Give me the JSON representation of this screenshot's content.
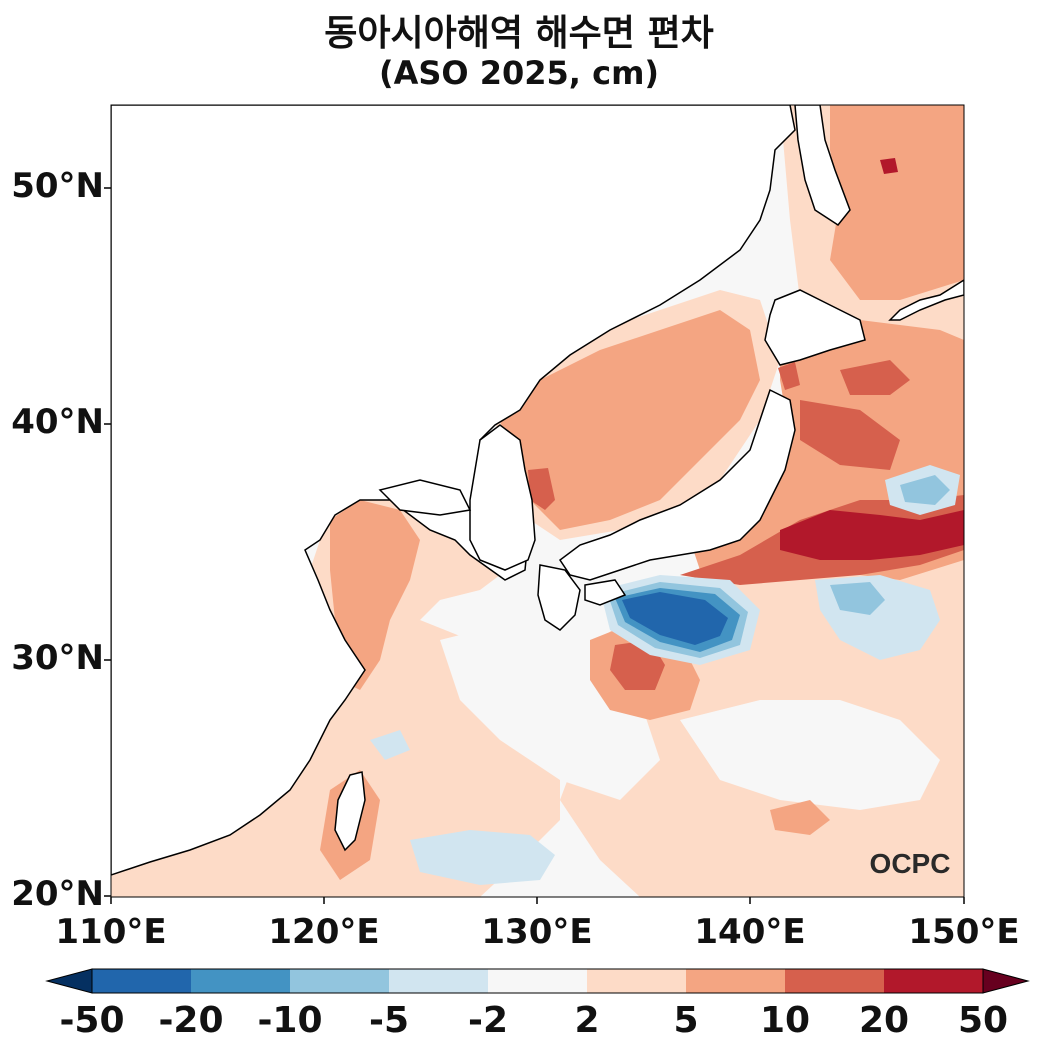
{
  "title": {
    "line1": "동아시아해역 해수면 편차",
    "line2": "(ASO 2025, cm)"
  },
  "axes": {
    "lat_ticks": [
      "50°N",
      "40°N",
      "30°N",
      "20°N"
    ],
    "lon_ticks": [
      "110°E",
      "120°E",
      "130°E",
      "140°E",
      "150°E"
    ],
    "lon_range": [
      110,
      150
    ],
    "lat_range": [
      20,
      53.5
    ]
  },
  "watermark": "OCPC",
  "colorbar": {
    "levels": [
      "-50",
      "-20",
      "-10",
      "-5",
      "-2",
      "2",
      "5",
      "10",
      "20",
      "50"
    ],
    "colors": [
      "#053061",
      "#2166ac",
      "#4393c3",
      "#92c5de",
      "#d1e5f0",
      "#f7f7f7",
      "#fddbc7",
      "#f4a582",
      "#d6604d",
      "#b2182b",
      "#67001f"
    ],
    "extend": "both"
  },
  "colors": {
    "land": "#ffffff",
    "coastline": "#000000",
    "neutral": "#f7f7f7",
    "positive_weak": "#fddbc7",
    "positive_mid": "#f4a582",
    "positive_strong": "#d6604d",
    "positive_max": "#b2182b",
    "negative_weak": "#d1e5f0",
    "negative_mid": "#92c5de",
    "negative_strong": "#4393c3",
    "negative_max": "#2166ac"
  }
}
